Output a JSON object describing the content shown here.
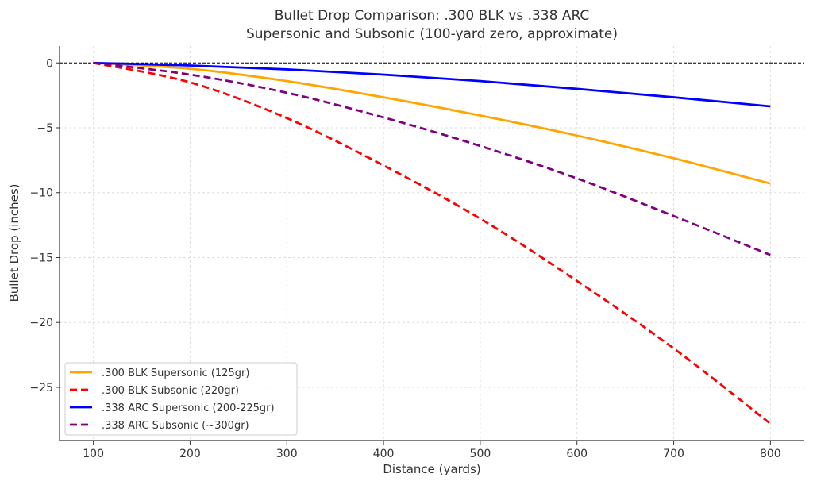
{
  "chart_data": {
    "type": "line",
    "title": "Bullet Drop Comparison: .300 BLK vs .338 ARC",
    "subtitle": "Supersonic and Subsonic (100-yard zero, approximate)",
    "xlabel": "Distance (yards)",
    "ylabel": "Bullet Drop (inches)",
    "xlim": [
      65,
      835
    ],
    "ylim": [
      -29.1,
      1.3
    ],
    "xticks": [
      100,
      200,
      300,
      400,
      500,
      600,
      700,
      800
    ],
    "yticks": [
      0,
      -5,
      -10,
      -15,
      -20,
      -25
    ],
    "ytick_labels": [
      "0",
      "−5",
      "−10",
      "−15",
      "−20",
      "−25"
    ],
    "grid": true,
    "legend_position": "bottom-left",
    "reference_line": {
      "y": 0,
      "style": "dashed",
      "color": "#000000"
    },
    "x": [
      100,
      200,
      300,
      400,
      500,
      600,
      700,
      800
    ],
    "series": [
      {
        "name": ".300 BLK Supersonic (125gr)",
        "color": "#FFA500",
        "dash": false,
        "values": [
          0,
          -0.45,
          -1.4,
          -2.65,
          -4.05,
          -5.6,
          -7.35,
          -9.3
        ]
      },
      {
        "name": ".300 BLK Subsonic (220gr)",
        "color": "#FF0000",
        "dash": true,
        "values": [
          0,
          -1.5,
          -4.25,
          -7.9,
          -12.0,
          -16.8,
          -22.0,
          -27.8
        ]
      },
      {
        "name": ".338 ARC Supersonic (200-225gr)",
        "color": "#0000FF",
        "dash": false,
        "values": [
          0,
          -0.2,
          -0.5,
          -0.9,
          -1.4,
          -2.0,
          -2.65,
          -3.35
        ]
      },
      {
        "name": ".338 ARC Subsonic (~300gr)",
        "color": "#800080",
        "dash": true,
        "values": [
          0,
          -0.9,
          -2.3,
          -4.2,
          -6.4,
          -8.9,
          -11.8,
          -14.8
        ]
      }
    ]
  }
}
